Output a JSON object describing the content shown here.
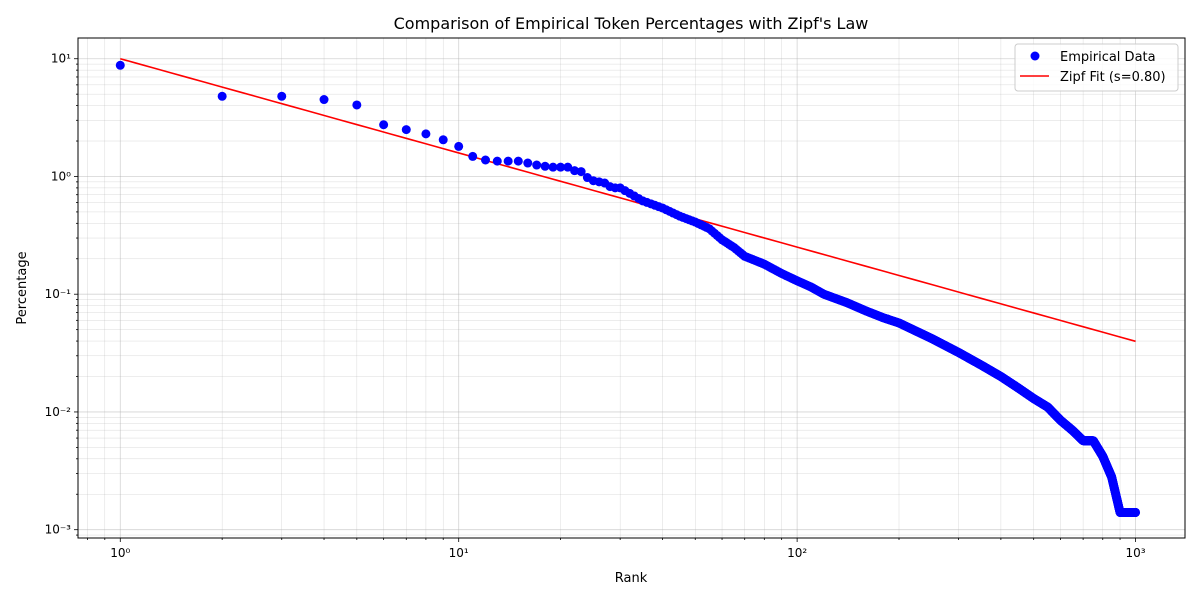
{
  "chart_data": {
    "type": "scatter",
    "title": "Comparison of Empirical Token Percentages with Zipf's Law",
    "xlabel": "Rank",
    "ylabel": "Percentage",
    "xscale": "log",
    "yscale": "log",
    "xlim": [
      0.75,
      1400
    ],
    "ylim": [
      0.00085,
      15
    ],
    "x_ticks": [
      1,
      10,
      100,
      1000
    ],
    "x_tick_labels": [
      "10⁰",
      "10¹",
      "10²",
      "10³"
    ],
    "y_ticks": [
      0.001,
      0.01,
      0.1,
      1,
      10
    ],
    "y_tick_labels": [
      "10⁻³",
      "10⁻²",
      "10⁻¹",
      "10⁰",
      "10¹"
    ],
    "grid": "both (major and minor)",
    "legend_position": "top-right",
    "series": [
      {
        "name": "Empirical Data",
        "kind": "scatter",
        "color": "#0000ff",
        "points": [
          [
            1,
            8.8
          ],
          [
            2,
            4.8
          ],
          [
            3,
            4.8
          ],
          [
            4,
            4.5
          ],
          [
            5,
            4.05
          ],
          [
            6,
            2.75
          ],
          [
            7,
            2.5
          ],
          [
            8,
            2.3
          ],
          [
            9,
            2.05
          ],
          [
            10,
            1.8
          ],
          [
            11,
            1.48
          ],
          [
            12,
            1.38
          ],
          [
            13,
            1.35
          ],
          [
            14,
            1.35
          ],
          [
            15,
            1.35
          ],
          [
            16,
            1.3
          ],
          [
            17,
            1.25
          ],
          [
            18,
            1.22
          ],
          [
            19,
            1.2
          ],
          [
            20,
            1.2
          ],
          [
            21,
            1.2
          ],
          [
            22,
            1.12
          ],
          [
            23,
            1.1
          ],
          [
            24,
            0.98
          ],
          [
            25,
            0.92
          ],
          [
            26,
            0.9
          ],
          [
            27,
            0.88
          ],
          [
            28,
            0.82
          ],
          [
            29,
            0.8
          ],
          [
            30,
            0.8
          ],
          [
            35,
            0.62
          ],
          [
            40,
            0.54
          ],
          [
            45,
            0.46
          ],
          [
            50,
            0.41
          ],
          [
            55,
            0.36
          ],
          [
            60,
            0.29
          ],
          [
            65,
            0.25
          ],
          [
            70,
            0.21
          ],
          [
            80,
            0.18
          ],
          [
            90,
            0.15
          ],
          [
            100,
            0.13
          ],
          [
            110,
            0.115
          ],
          [
            120,
            0.1
          ],
          [
            140,
            0.085
          ],
          [
            160,
            0.072
          ],
          [
            180,
            0.063
          ],
          [
            200,
            0.057
          ],
          [
            250,
            0.042
          ],
          [
            300,
            0.032
          ],
          [
            350,
            0.025
          ],
          [
            400,
            0.02
          ],
          [
            450,
            0.016
          ],
          [
            500,
            0.013
          ],
          [
            550,
            0.011
          ],
          [
            600,
            0.0085
          ],
          [
            650,
            0.007
          ],
          [
            700,
            0.0057
          ],
          [
            750,
            0.0057
          ],
          [
            800,
            0.0042
          ],
          [
            850,
            0.0028
          ],
          [
            900,
            0.0014
          ],
          [
            950,
            0.0014
          ],
          [
            1000,
            0.0014
          ]
        ]
      },
      {
        "name": "Zipf Fit (s=0.80)",
        "kind": "line",
        "color": "#ff0000",
        "formula": "y = 10 * x^-0.8",
        "x_range": [
          1,
          1000
        ]
      }
    ]
  }
}
